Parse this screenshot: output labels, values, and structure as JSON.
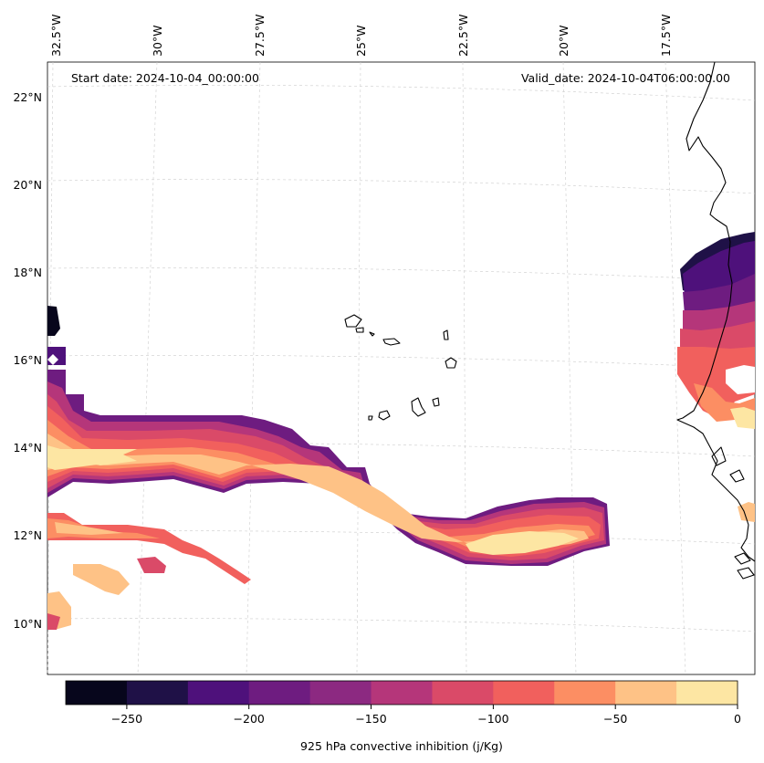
{
  "map": {
    "annotations": {
      "start_date": "Start date: 2024-10-04_00:00:00",
      "valid_date": "Valid_date: 2024-10-04T06:00:00.00"
    },
    "lon_labels": [
      "32.5°W",
      "30°W",
      "27.5°W",
      "25°W",
      "22.5°W",
      "20°W",
      "17.5°W"
    ],
    "lat_labels": [
      "22°N",
      "20°N",
      "18°N",
      "16°N",
      "14°N",
      "12°N",
      "10°N"
    ],
    "gridlines": true
  },
  "colorbar": {
    "label": "925 hPa convective inhibition (j/Kg)",
    "tick_labels": [
      "−250",
      "−200",
      "−150",
      "−100",
      "−50",
      "0"
    ],
    "levels": [
      -275,
      -250,
      -225,
      -200,
      -175,
      -150,
      -125,
      -100,
      -75,
      -50,
      -25,
      0
    ],
    "colors": [
      "#07061c",
      "#1f1147",
      "#4e117b",
      "#6e1c80",
      "#8c2981",
      "#b5367a",
      "#da4a68",
      "#f1605d",
      "#fc8e63",
      "#fec286",
      "#fde6a3"
    ]
  }
}
